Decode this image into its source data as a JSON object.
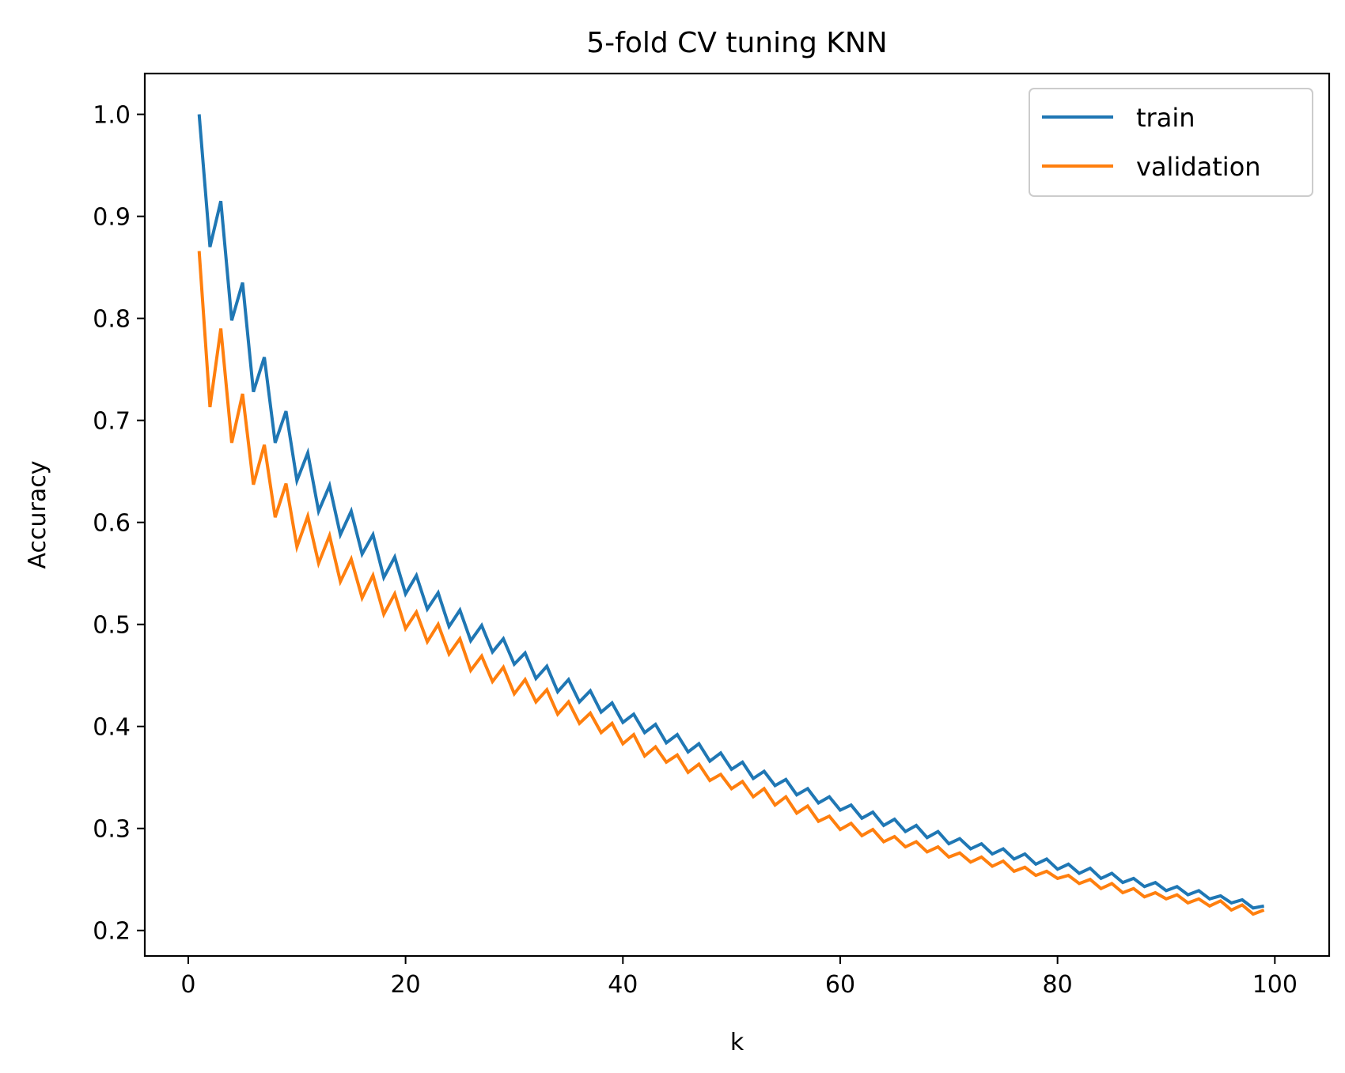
{
  "chart_data": {
    "type": "line",
    "title": "5-fold CV tuning KNN",
    "xlabel": "k",
    "ylabel": "Accuracy",
    "xlim": [
      -4,
      105
    ],
    "ylim": [
      0.175,
      1.04
    ],
    "xticks": [
      0,
      20,
      40,
      60,
      80,
      100
    ],
    "yticks": [
      0.2,
      0.3,
      0.4,
      0.5,
      0.6,
      0.7,
      0.8,
      0.9,
      1.0
    ],
    "xtick_labels": [
      "0",
      "20",
      "40",
      "60",
      "80",
      "100"
    ],
    "ytick_labels": [
      "0.2",
      "0.3",
      "0.4",
      "0.5",
      "0.6",
      "0.7",
      "0.8",
      "0.9",
      "1.0"
    ],
    "grid": false,
    "legend_position": "top-right",
    "x": [
      1,
      2,
      3,
      4,
      5,
      6,
      7,
      8,
      9,
      10,
      11,
      12,
      13,
      14,
      15,
      16,
      17,
      18,
      19,
      20,
      21,
      22,
      23,
      24,
      25,
      26,
      27,
      28,
      29,
      30,
      31,
      32,
      33,
      34,
      35,
      36,
      37,
      38,
      39,
      40,
      41,
      42,
      43,
      44,
      45,
      46,
      47,
      48,
      49,
      50,
      51,
      52,
      53,
      54,
      55,
      56,
      57,
      58,
      59,
      60,
      61,
      62,
      63,
      64,
      65,
      66,
      67,
      68,
      69,
      70,
      71,
      72,
      73,
      74,
      75,
      76,
      77,
      78,
      79,
      80,
      81,
      82,
      83,
      84,
      85,
      86,
      87,
      88,
      89,
      90,
      91,
      92,
      93,
      94,
      95,
      96,
      97,
      98,
      99
    ],
    "series": [
      {
        "name": "train",
        "color": "#1f77b4",
        "values": [
          1.0,
          0.87,
          0.915,
          0.798,
          0.835,
          0.728,
          0.762,
          0.678,
          0.709,
          0.641,
          0.668,
          0.611,
          0.636,
          0.588,
          0.611,
          0.569,
          0.588,
          0.546,
          0.566,
          0.53,
          0.548,
          0.515,
          0.531,
          0.498,
          0.514,
          0.484,
          0.499,
          0.473,
          0.486,
          0.461,
          0.472,
          0.447,
          0.459,
          0.434,
          0.446,
          0.424,
          0.435,
          0.414,
          0.423,
          0.404,
          0.412,
          0.394,
          0.402,
          0.384,
          0.392,
          0.375,
          0.383,
          0.366,
          0.374,
          0.358,
          0.365,
          0.349,
          0.356,
          0.342,
          0.348,
          0.333,
          0.339,
          0.325,
          0.331,
          0.318,
          0.323,
          0.31,
          0.316,
          0.303,
          0.309,
          0.297,
          0.303,
          0.291,
          0.297,
          0.285,
          0.29,
          0.28,
          0.285,
          0.275,
          0.28,
          0.27,
          0.275,
          0.265,
          0.27,
          0.26,
          0.265,
          0.256,
          0.261,
          0.251,
          0.256,
          0.247,
          0.251,
          0.243,
          0.247,
          0.239,
          0.243,
          0.235,
          0.239,
          0.231,
          0.234,
          0.227,
          0.23,
          0.222,
          0.224
        ]
      },
      {
        "name": "validation",
        "color": "#ff7f0e",
        "values": [
          0.866,
          0.713,
          0.79,
          0.678,
          0.726,
          0.637,
          0.676,
          0.605,
          0.638,
          0.576,
          0.606,
          0.56,
          0.587,
          0.542,
          0.564,
          0.526,
          0.548,
          0.51,
          0.53,
          0.496,
          0.512,
          0.483,
          0.5,
          0.471,
          0.486,
          0.455,
          0.469,
          0.444,
          0.458,
          0.432,
          0.446,
          0.424,
          0.436,
          0.412,
          0.424,
          0.403,
          0.413,
          0.394,
          0.403,
          0.383,
          0.392,
          0.371,
          0.38,
          0.365,
          0.372,
          0.355,
          0.363,
          0.347,
          0.353,
          0.339,
          0.346,
          0.331,
          0.339,
          0.323,
          0.331,
          0.315,
          0.322,
          0.307,
          0.312,
          0.299,
          0.305,
          0.293,
          0.299,
          0.287,
          0.292,
          0.282,
          0.287,
          0.277,
          0.282,
          0.272,
          0.276,
          0.267,
          0.272,
          0.263,
          0.268,
          0.258,
          0.262,
          0.254,
          0.258,
          0.251,
          0.254,
          0.246,
          0.25,
          0.241,
          0.246,
          0.237,
          0.241,
          0.233,
          0.237,
          0.231,
          0.235,
          0.227,
          0.231,
          0.224,
          0.229,
          0.22,
          0.225,
          0.216,
          0.22
        ]
      }
    ]
  }
}
